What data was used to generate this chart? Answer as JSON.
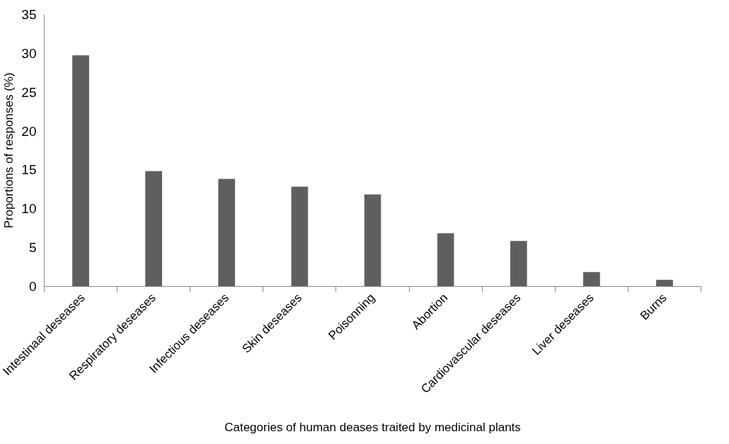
{
  "chart_data": {
    "type": "bar",
    "xlabel": "Categories of human deases traited by medicinal plants",
    "ylabel": "Proportions of responses (%)",
    "categories": [
      "Intestinaal deseases",
      "Respiratory deseases",
      "Infectious deseases",
      "Skin deseases",
      "Poisonning",
      "Abortion",
      "Cardiovascular deseases",
      "Liver deseases",
      "Burns"
    ],
    "values": [
      29.7,
      14.8,
      13.8,
      12.8,
      11.8,
      6.8,
      5.8,
      1.8,
      0.8
    ],
    "color": "#5f5f5f",
    "ylim": [
      0,
      35
    ],
    "yticks": [
      0,
      5,
      10,
      15,
      20,
      25,
      30,
      35
    ],
    "grid": false
  }
}
